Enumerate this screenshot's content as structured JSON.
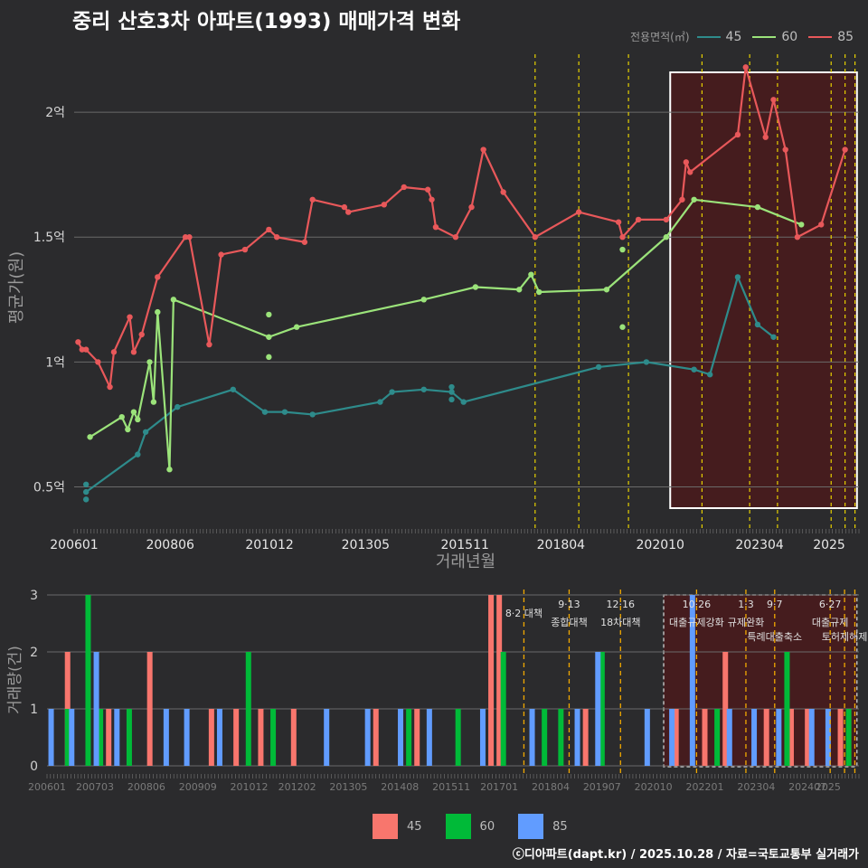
{
  "title": "중리 산호3차 아파트(1993) 매매가격 변화",
  "legend": {
    "title": "전용면적(㎡)",
    "items": [
      {
        "label": "45",
        "line_color": "#2e8b8b",
        "bar_color": "#f8766d"
      },
      {
        "label": "60",
        "line_color": "#9be37a",
        "bar_color": "#00ba38"
      },
      {
        "label": "85",
        "line_color": "#e8585a",
        "bar_color": "#619cff"
      }
    ]
  },
  "credit": "ⓒ디아파트(dapt.kr) / 2025.10.28 / 자료=국토교통부 실거래가",
  "chart_data": [
    {
      "type": "line",
      "title": "중리 산호3차 아파트(1993) 매매가격 변화",
      "xlabel": "거래년월",
      "ylabel": "평균가(원)",
      "x_ticks": [
        "200601",
        "200806",
        "201012",
        "201305",
        "201511",
        "201804",
        "202010",
        "202304",
        "2025"
      ],
      "y_ticks": [
        {
          "value": 0.5,
          "label": "0.5억"
        },
        {
          "value": 1.0,
          "label": "1억"
        },
        {
          "value": 1.5,
          "label": "1.5억"
        },
        {
          "value": 2.0,
          "label": "2억"
        }
      ],
      "ylim": [
        0.35,
        2.25
      ],
      "x_range": [
        2006.0,
        2025.75
      ],
      "highlight_range": [
        2021.0,
        2025.7
      ],
      "policy_dates": [
        2017.6,
        2018.7,
        2019.95,
        2021.8,
        2023.0,
        2023.7,
        2025.05,
        2025.4,
        2025.65
      ],
      "series": [
        {
          "name": "45",
          "x": [
            2006.3,
            2007.6,
            2007.8,
            2008.6,
            2010.0,
            2010.8,
            2011.3,
            2012.0,
            2013.7,
            2014.0,
            2014.8,
            2015.5,
            2015.8,
            2019.2,
            2020.4,
            2021.6,
            2022.0,
            2022.7,
            2023.2,
            2023.6
          ],
          "y": [
            0.48,
            0.63,
            0.72,
            0.82,
            0.89,
            0.8,
            0.8,
            0.79,
            0.84,
            0.88,
            0.89,
            0.88,
            0.84,
            0.98,
            1.0,
            0.97,
            0.95,
            1.34,
            1.15,
            1.1
          ],
          "scatter_x": [
            2006.3,
            2006.3,
            2015.5,
            2015.5
          ],
          "scatter_y": [
            0.51,
            0.45,
            0.9,
            0.85
          ]
        },
        {
          "name": "60",
          "x": [
            2006.4,
            2007.2,
            2007.35,
            2007.5,
            2007.6,
            2007.9,
            2008.0,
            2008.1,
            2008.4,
            2008.5,
            2010.9,
            2011.6,
            2014.8,
            2016.1,
            2017.2,
            2017.5,
            2017.7,
            2019.4,
            2020.9,
            2021.6,
            2023.2,
            2024.3
          ],
          "y": [
            0.7,
            0.78,
            0.73,
            0.8,
            0.77,
            1.0,
            0.84,
            1.2,
            0.57,
            1.25,
            1.1,
            1.14,
            1.25,
            1.3,
            1.29,
            1.35,
            1.28,
            1.29,
            1.5,
            1.65,
            1.62,
            1.55
          ],
          "scatter_x": [
            2010.9,
            2010.9,
            2019.8,
            2019.8
          ],
          "scatter_y": [
            1.19,
            1.02,
            1.45,
            1.14
          ]
        },
        {
          "name": "85",
          "x": [
            2006.1,
            2006.2,
            2006.3,
            2006.6,
            2006.9,
            2007.0,
            2007.4,
            2007.5,
            2007.7,
            2008.1,
            2008.8,
            2008.9,
            2009.4,
            2009.7,
            2010.3,
            2010.9,
            2011.1,
            2011.8,
            2012.0,
            2012.8,
            2012.9,
            2013.8,
            2014.3,
            2014.9,
            2015.0,
            2015.1,
            2015.6,
            2016.0,
            2016.3,
            2016.8,
            2017.6,
            2018.7,
            2019.7,
            2019.8,
            2020.2,
            2020.9,
            2021.3,
            2021.4,
            2021.5,
            2022.7,
            2022.9,
            2023.4,
            2023.6,
            2023.9,
            2024.2,
            2024.8,
            2025.4
          ],
          "y": [
            1.08,
            1.05,
            1.05,
            1.0,
            0.9,
            1.04,
            1.18,
            1.04,
            1.11,
            1.34,
            1.5,
            1.5,
            1.07,
            1.43,
            1.45,
            1.53,
            1.5,
            1.48,
            1.65,
            1.62,
            1.6,
            1.63,
            1.7,
            1.69,
            1.65,
            1.54,
            1.5,
            1.62,
            1.85,
            1.68,
            1.5,
            1.6,
            1.56,
            1.5,
            1.57,
            1.57,
            1.65,
            1.8,
            1.76,
            1.91,
            2.18,
            1.9,
            2.05,
            1.85,
            1.5,
            1.55,
            1.85
          ],
          "scatter_x": [],
          "scatter_y": []
        }
      ]
    },
    {
      "type": "bar",
      "xlabel": "",
      "ylabel": "거래량(건)",
      "ylim": [
        0,
        3
      ],
      "y_ticks": [
        0,
        1,
        2,
        3
      ],
      "x_ticks": [
        "200601",
        "200703",
        "200806",
        "200909",
        "201012",
        "201202",
        "201305",
        "201408",
        "201511",
        "201701",
        "201804",
        "201907",
        "202010",
        "202201",
        "202304",
        "202407",
        "2025"
      ],
      "policies": [
        {
          "date": "8·2 대책",
          "x": 2017.6
        },
        {
          "date": "9·13",
          "label": "종합대책",
          "x": 2018.7
        },
        {
          "date": "12·16",
          "label": "18차대책",
          "x": 2019.95
        },
        {
          "date": "10·26",
          "label": "대출규제강화",
          "x": 2021.8
        },
        {
          "date": "1·3",
          "label": "규제완화",
          "x": 2023.0
        },
        {
          "date": "9·7",
          "label": "특례대출축소",
          "x": 2023.7
        },
        {
          "date": "6·27",
          "label": "대출규제",
          "x": 2025.05
        },
        {
          "date": "",
          "label": "토허제해제",
          "x": 2025.4
        },
        {
          "date": "",
          "label": "",
          "x": 2025.65
        }
      ],
      "series": [
        {
          "name": "45",
          "x": [
            2006.5,
            2007.5,
            2008.5,
            2010.0,
            2010.6,
            2011.2,
            2012.0,
            2014.0,
            2015.0,
            2016.8,
            2017.0,
            2019.1,
            2021.3,
            2022.0,
            2022.5,
            2023.5,
            2024.1,
            2024.5,
            2025.3
          ],
          "y": [
            2,
            1,
            2,
            1,
            1,
            1,
            1,
            1,
            1,
            3,
            3,
            1,
            1,
            1,
            2,
            1,
            1,
            1,
            1
          ]
        },
        {
          "name": "60",
          "x": [
            2006.5,
            2007.0,
            2007.3,
            2008.0,
            2010.9,
            2011.5,
            2014.8,
            2016.0,
            2017.1,
            2018.1,
            2018.5,
            2019.5,
            2022.3,
            2024.0,
            2025.5
          ],
          "y": [
            1,
            3,
            1,
            1,
            2,
            1,
            1,
            1,
            2,
            1,
            1,
            2,
            1,
            2,
            1
          ]
        },
        {
          "name": "85",
          "x": [
            2006.1,
            2006.6,
            2007.2,
            2007.7,
            2008.9,
            2009.4,
            2010.2,
            2012.8,
            2013.8,
            2014.6,
            2015.3,
            2016.6,
            2017.8,
            2018.9,
            2019.4,
            2020.6,
            2021.2,
            2021.7,
            2022.6,
            2023.2,
            2023.8,
            2024.6,
            2025.0
          ],
          "y": [
            1,
            1,
            2,
            1,
            1,
            1,
            1,
            1,
            1,
            1,
            1,
            1,
            1,
            1,
            2,
            1,
            1,
            3,
            1,
            1,
            1,
            1,
            1
          ]
        }
      ]
    }
  ]
}
